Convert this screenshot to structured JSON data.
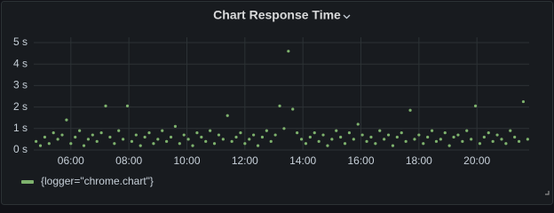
{
  "chart_data": {
    "type": "scatter",
    "title": "Chart Response Time",
    "xlim": [
      4.72,
      21.8
    ],
    "ylim": [
      0,
      5
    ],
    "xticks": [
      {
        "value": 6,
        "label": "06:00"
      },
      {
        "value": 8,
        "label": "08:00"
      },
      {
        "value": 10,
        "label": "10:00"
      },
      {
        "value": 12,
        "label": "12:00"
      },
      {
        "value": 14,
        "label": "14:00"
      },
      {
        "value": 16,
        "label": "16:00"
      },
      {
        "value": 18,
        "label": "18:00"
      },
      {
        "value": 20,
        "label": "20:00"
      }
    ],
    "yticks": [
      {
        "value": 0,
        "label": "0 s"
      },
      {
        "value": 1,
        "label": "1 s"
      },
      {
        "value": 2,
        "label": "2 s"
      },
      {
        "value": 3,
        "label": "3 s"
      },
      {
        "value": 4,
        "label": "4 s"
      },
      {
        "value": 5,
        "label": "5 s"
      }
    ],
    "grid": true,
    "legend": "bottom-left",
    "x": [
      4.8,
      4.95,
      5.1,
      5.25,
      5.4,
      5.55,
      5.7,
      5.85,
      6.0,
      6.15,
      6.3,
      6.45,
      6.6,
      6.75,
      6.9,
      7.05,
      7.2,
      7.35,
      7.5,
      7.65,
      7.8,
      7.95,
      8.1,
      8.25,
      8.4,
      8.55,
      8.7,
      8.85,
      9.0,
      9.15,
      9.3,
      9.45,
      9.6,
      9.75,
      9.9,
      10.05,
      10.2,
      10.35,
      10.5,
      10.65,
      10.8,
      10.95,
      11.1,
      11.25,
      11.4,
      11.55,
      11.7,
      11.85,
      12.0,
      12.15,
      12.3,
      12.45,
      12.6,
      12.75,
      12.9,
      13.05,
      13.2,
      13.35,
      13.5,
      13.65,
      13.8,
      13.95,
      14.1,
      14.25,
      14.4,
      14.55,
      14.7,
      14.85,
      15.0,
      15.15,
      15.3,
      15.45,
      15.6,
      15.75,
      15.9,
      16.05,
      16.2,
      16.35,
      16.5,
      16.65,
      16.8,
      16.95,
      17.1,
      17.25,
      17.4,
      17.55,
      17.7,
      17.85,
      18.0,
      18.15,
      18.3,
      18.45,
      18.6,
      18.75,
      18.9,
      19.05,
      19.2,
      19.35,
      19.5,
      19.65,
      19.8,
      19.95,
      20.1,
      20.25,
      20.4,
      20.55,
      20.7,
      20.85,
      21.0,
      21.15,
      21.3,
      21.45,
      21.6,
      21.75
    ],
    "series": [
      {
        "name": "{logger=\"chrome.chart\"}",
        "color": "#7eb26d",
        "values": [
          0.4,
          0.2,
          0.6,
          0.3,
          0.8,
          0.5,
          0.7,
          1.4,
          0.3,
          0.6,
          0.9,
          0.2,
          0.5,
          0.7,
          0.4,
          0.8,
          2.05,
          0.6,
          0.3,
          0.9,
          0.5,
          2.05,
          0.4,
          0.7,
          0.2,
          0.6,
          0.8,
          0.3,
          0.5,
          0.9,
          0.4,
          0.6,
          1.1,
          0.3,
          0.7,
          0.5,
          0.2,
          0.8,
          0.6,
          0.4,
          0.9,
          0.3,
          0.7,
          0.5,
          1.6,
          0.4,
          0.6,
          0.8,
          0.3,
          0.5,
          0.7,
          0.2,
          0.6,
          0.9,
          0.4,
          0.7,
          2.05,
          1.0,
          4.6,
          1.9,
          0.8,
          0.5,
          0.3,
          0.6,
          0.8,
          0.4,
          0.7,
          0.2,
          0.5,
          0.9,
          0.6,
          0.3,
          0.8,
          0.5,
          1.2,
          0.7,
          0.4,
          0.6,
          0.3,
          0.9,
          0.5,
          0.7,
          0.2,
          0.6,
          0.8,
          0.4,
          1.85,
          0.5,
          0.7,
          0.3,
          0.6,
          0.9,
          0.4,
          0.5,
          0.8,
          0.2,
          0.6,
          0.7,
          0.4,
          0.9,
          0.5,
          2.05,
          0.3,
          0.6,
          0.8,
          0.4,
          0.7,
          0.5,
          0.3,
          0.9,
          0.6,
          0.4,
          2.25,
          0.5
        ]
      }
    ]
  }
}
